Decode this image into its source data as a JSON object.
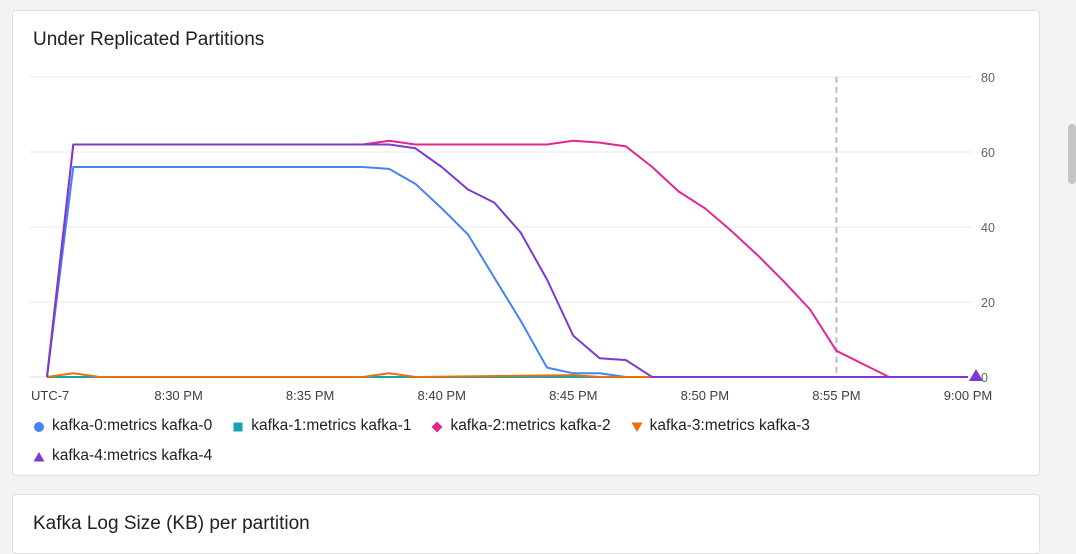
{
  "charts": [
    {
      "title": "Under Replicated Partitions"
    },
    {
      "title": "Kafka Log Size (KB) per partition"
    }
  ],
  "chart_data": {
    "type": "line",
    "title": "Under Replicated Partitions",
    "xlabel": "",
    "ylabel": "",
    "timezone_label": "UTC-7",
    "x_tick_labels": [
      "8:30 PM",
      "8:35 PM",
      "8:40 PM",
      "8:45 PM",
      "8:50 PM",
      "8:55 PM",
      "9:00 PM"
    ],
    "y_ticks": [
      0,
      20,
      40,
      60,
      80
    ],
    "ylim": [
      0,
      80
    ],
    "y_axis_side": "right",
    "grid": true,
    "legend_position": "bottom",
    "cursor_time": "8:55 PM",
    "series": [
      {
        "name": "kafka-0:metrics kafka-0",
        "color": "#4285f4",
        "marker": "circle",
        "points": [
          [
            "8:25 PM",
            0
          ],
          [
            "8:26 PM",
            56
          ],
          [
            "8:37 PM",
            56
          ],
          [
            "8:38 PM",
            55.5
          ],
          [
            "8:39 PM",
            51.5
          ],
          [
            "8:40 PM",
            45
          ],
          [
            "8:41 PM",
            38
          ],
          [
            "8:42 PM",
            26.5
          ],
          [
            "8:43 PM",
            15
          ],
          [
            "8:44 PM",
            2.5
          ],
          [
            "8:45 PM",
            1
          ],
          [
            "8:46 PM",
            1
          ],
          [
            "8:47 PM",
            0
          ],
          [
            "9:00 PM",
            0
          ]
        ]
      },
      {
        "name": "kafka-1:metrics kafka-1",
        "color": "#12a4af",
        "marker": "square",
        "points": [
          [
            "8:25 PM",
            0
          ],
          [
            "9:00 PM",
            0
          ]
        ]
      },
      {
        "name": "kafka-2:metrics kafka-2",
        "color": "#e52592",
        "marker": "diamond",
        "points": [
          [
            "8:25 PM",
            0
          ],
          [
            "8:26 PM",
            62
          ],
          [
            "8:37 PM",
            62
          ],
          [
            "8:38 PM",
            63
          ],
          [
            "8:39 PM",
            62
          ],
          [
            "8:44 PM",
            62
          ],
          [
            "8:45 PM",
            63
          ],
          [
            "8:46 PM",
            62.5
          ],
          [
            "8:47 PM",
            61.5
          ],
          [
            "8:48 PM",
            56
          ],
          [
            "8:49 PM",
            49.5
          ],
          [
            "8:50 PM",
            45
          ],
          [
            "8:51 PM",
            39
          ],
          [
            "8:52 PM",
            32.5
          ],
          [
            "8:53 PM",
            25.5
          ],
          [
            "8:54 PM",
            18
          ],
          [
            "8:55 PM",
            7
          ],
          [
            "8:56 PM",
            3.5
          ],
          [
            "8:57 PM",
            0
          ],
          [
            "9:00 PM",
            0
          ]
        ]
      },
      {
        "name": "kafka-3:metrics kafka-3",
        "color": "#e8710a",
        "marker": "triangle-down",
        "points": [
          [
            "8:25 PM",
            0
          ],
          [
            "8:26 PM",
            1
          ],
          [
            "8:27 PM",
            0
          ],
          [
            "8:37 PM",
            0
          ],
          [
            "8:38 PM",
            1
          ],
          [
            "8:39 PM",
            0
          ],
          [
            "8:45 PM",
            0.5
          ],
          [
            "8:46 PM",
            0
          ],
          [
            "9:00 PM",
            0
          ]
        ]
      },
      {
        "name": "kafka-4:metrics kafka-4",
        "color": "#7e3ad0",
        "marker": "triangle-up",
        "points": [
          [
            "8:25 PM",
            0
          ],
          [
            "8:26 PM",
            62
          ],
          [
            "8:38 PM",
            62
          ],
          [
            "8:39 PM",
            61
          ],
          [
            "8:40 PM",
            56
          ],
          [
            "8:41 PM",
            50
          ],
          [
            "8:42 PM",
            46.5
          ],
          [
            "8:43 PM",
            38.5
          ],
          [
            "8:44 PM",
            26
          ],
          [
            "8:45 PM",
            11
          ],
          [
            "8:46 PM",
            5
          ],
          [
            "8:47 PM",
            4.5
          ],
          [
            "8:48 PM",
            0
          ],
          [
            "9:00 PM",
            0
          ]
        ]
      }
    ]
  },
  "colors": {
    "grid": "#e8eaed",
    "axis_text": "#5f6368",
    "cursor": "#bdbdbd"
  }
}
